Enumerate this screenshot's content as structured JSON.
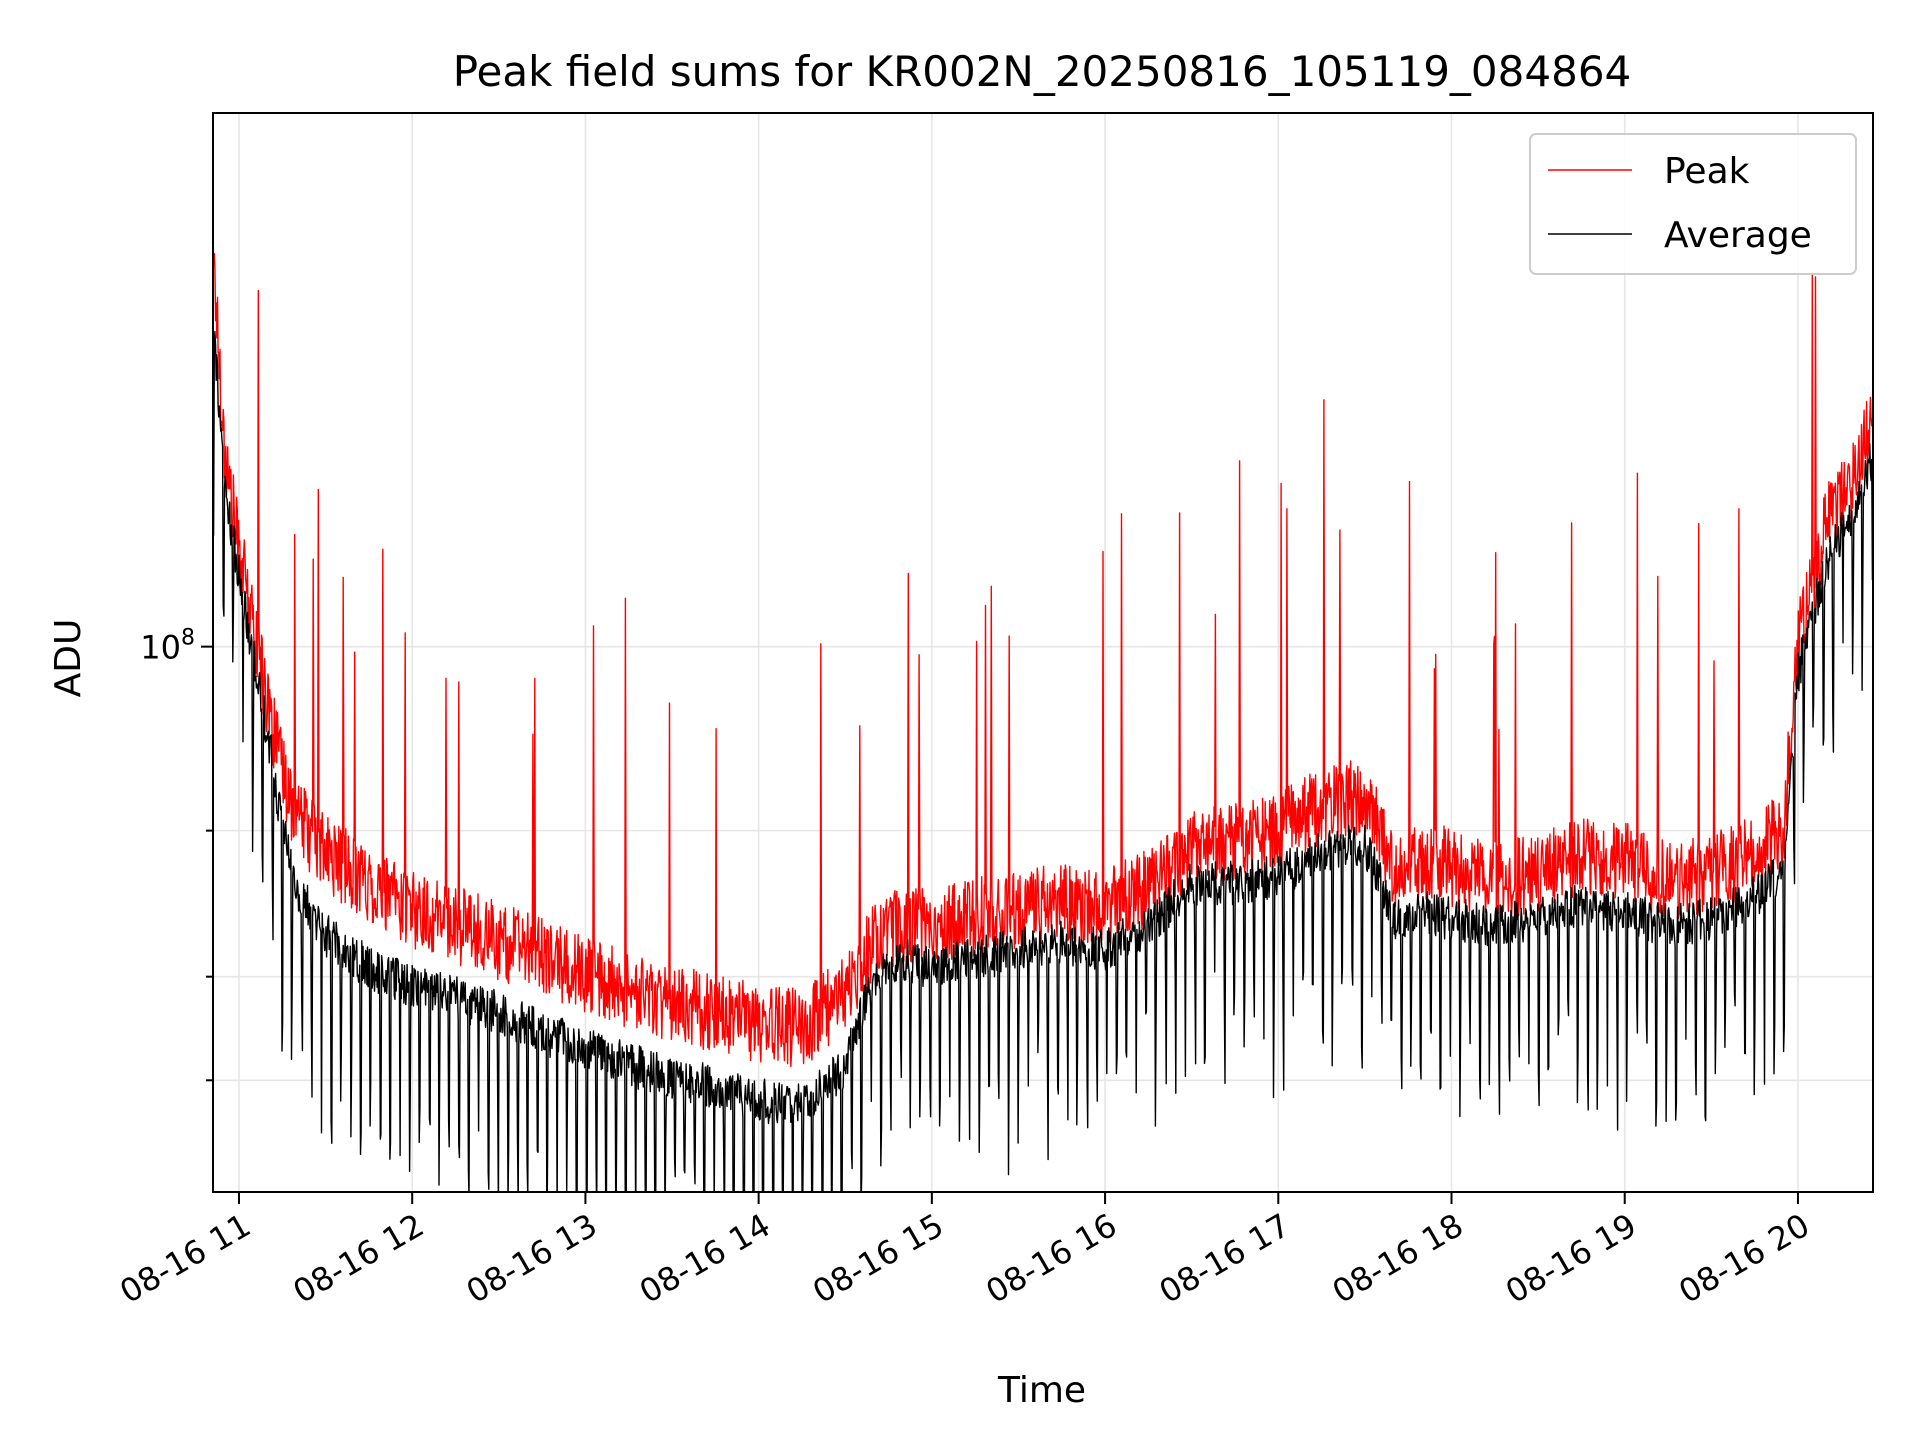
{
  "chart_data": {
    "type": "line",
    "title": "Peak field sums for KR002N_20250816_105119_084864",
    "xlabel": "Time",
    "ylabel": "ADU",
    "yscale": "log",
    "y_tick_label": {
      "base": "10",
      "exp": "8",
      "value": 100000000
    },
    "y_minor_ticks": [
      30000000,
      40000000,
      60000000
    ],
    "ylim": [
      22000000,
      440000000
    ],
    "xlim": [
      "08-16 10:51",
      "08-16 20:26"
    ],
    "x_ticks": [
      {
        "t": "08-16 11:00",
        "label": "08-16 11"
      },
      {
        "t": "08-16 12:00",
        "label": "08-16 12"
      },
      {
        "t": "08-16 13:00",
        "label": "08-16 13"
      },
      {
        "t": "08-16 14:00",
        "label": "08-16 14"
      },
      {
        "t": "08-16 15:00",
        "label": "08-16 15"
      },
      {
        "t": "08-16 16:00",
        "label": "08-16 16"
      },
      {
        "t": "08-16 17:00",
        "label": "08-16 17"
      },
      {
        "t": "08-16 18:00",
        "label": "08-16 18"
      },
      {
        "t": "08-16 19:00",
        "label": "08-16 19"
      },
      {
        "t": "08-16 20:00",
        "label": "08-16 20"
      }
    ],
    "grid": true,
    "legend_position": "top-right",
    "series": [
      {
        "name": "Peak",
        "color": "#ff0000",
        "x": [
          "08-16 10:51",
          "08-16 10:55",
          "08-16 11:00",
          "08-16 11:05",
          "08-16 11:10",
          "08-16 11:15",
          "08-16 11:20",
          "08-16 11:30",
          "08-16 11:40",
          "08-16 11:50",
          "08-16 12:00",
          "08-16 12:15",
          "08-16 12:30",
          "08-16 12:45",
          "08-16 13:00",
          "08-16 13:15",
          "08-16 13:30",
          "08-16 13:45",
          "08-16 14:00",
          "08-16 14:15",
          "08-16 14:30",
          "08-16 14:40",
          "08-16 14:50",
          "08-16 15:00",
          "08-16 15:15",
          "08-16 15:30",
          "08-16 15:45",
          "08-16 16:00",
          "08-16 16:15",
          "08-16 16:30",
          "08-16 16:45",
          "08-16 17:00",
          "08-16 17:15",
          "08-16 17:30",
          "08-16 17:40",
          "08-16 17:50",
          "08-16 18:00",
          "08-16 18:15",
          "08-16 18:30",
          "08-16 18:45",
          "08-16 19:00",
          "08-16 19:15",
          "08-16 19:30",
          "08-16 19:45",
          "08-16 19:55",
          "08-16 20:00",
          "08-16 20:10",
          "08-16 20:20",
          "08-16 20:26"
        ],
        "y": [
          300000000,
          170000000,
          130000000,
          105000000,
          85000000,
          70000000,
          62000000,
          56000000,
          53000000,
          50000000,
          48000000,
          46000000,
          44000000,
          42000000,
          40000000,
          38500000,
          37000000,
          36000000,
          35000000,
          34500000,
          38000000,
          44000000,
          46000000,
          46000000,
          47000000,
          48000000,
          49000000,
          48000000,
          51000000,
          57000000,
          58000000,
          60000000,
          64000000,
          66000000,
          53000000,
          55000000,
          54000000,
          52000000,
          53000000,
          56000000,
          55000000,
          52000000,
          53000000,
          56000000,
          60000000,
          100000000,
          140000000,
          160000000,
          190000000
        ]
      },
      {
        "name": "Average",
        "color": "#000000",
        "x": [
          "08-16 10:51",
          "08-16 10:55",
          "08-16 11:00",
          "08-16 11:05",
          "08-16 11:10",
          "08-16 11:15",
          "08-16 11:20",
          "08-16 11:30",
          "08-16 11:40",
          "08-16 11:50",
          "08-16 12:00",
          "08-16 12:15",
          "08-16 12:30",
          "08-16 12:45",
          "08-16 13:00",
          "08-16 13:15",
          "08-16 13:30",
          "08-16 13:45",
          "08-16 14:00",
          "08-16 14:15",
          "08-16 14:30",
          "08-16 14:40",
          "08-16 14:50",
          "08-16 15:00",
          "08-16 15:15",
          "08-16 15:30",
          "08-16 15:45",
          "08-16 16:00",
          "08-16 16:15",
          "08-16 16:30",
          "08-16 16:45",
          "08-16 17:00",
          "08-16 17:15",
          "08-16 17:30",
          "08-16 17:40",
          "08-16 17:50",
          "08-16 18:00",
          "08-16 18:15",
          "08-16 18:30",
          "08-16 18:45",
          "08-16 19:00",
          "08-16 19:15",
          "08-16 19:30",
          "08-16 19:45",
          "08-16 19:55",
          "08-16 20:00",
          "08-16 20:10",
          "08-16 20:20",
          "08-16 20:26"
        ],
        "y": [
          260000000,
          160000000,
          125000000,
          100000000,
          80000000,
          62000000,
          52000000,
          46000000,
          43000000,
          41000000,
          40000000,
          38500000,
          37000000,
          35000000,
          33500000,
          32000000,
          31000000,
          30000000,
          29000000,
          28500000,
          32000000,
          41000000,
          43000000,
          42000000,
          43000000,
          44000000,
          45000000,
          44000000,
          47000000,
          53000000,
          53000000,
          54000000,
          58000000,
          59000000,
          48000000,
          49000000,
          48000000,
          47000000,
          48000000,
          50000000,
          49000000,
          47000000,
          48000000,
          51000000,
          55000000,
          95000000,
          130000000,
          150000000,
          175000000
        ]
      }
    ]
  }
}
